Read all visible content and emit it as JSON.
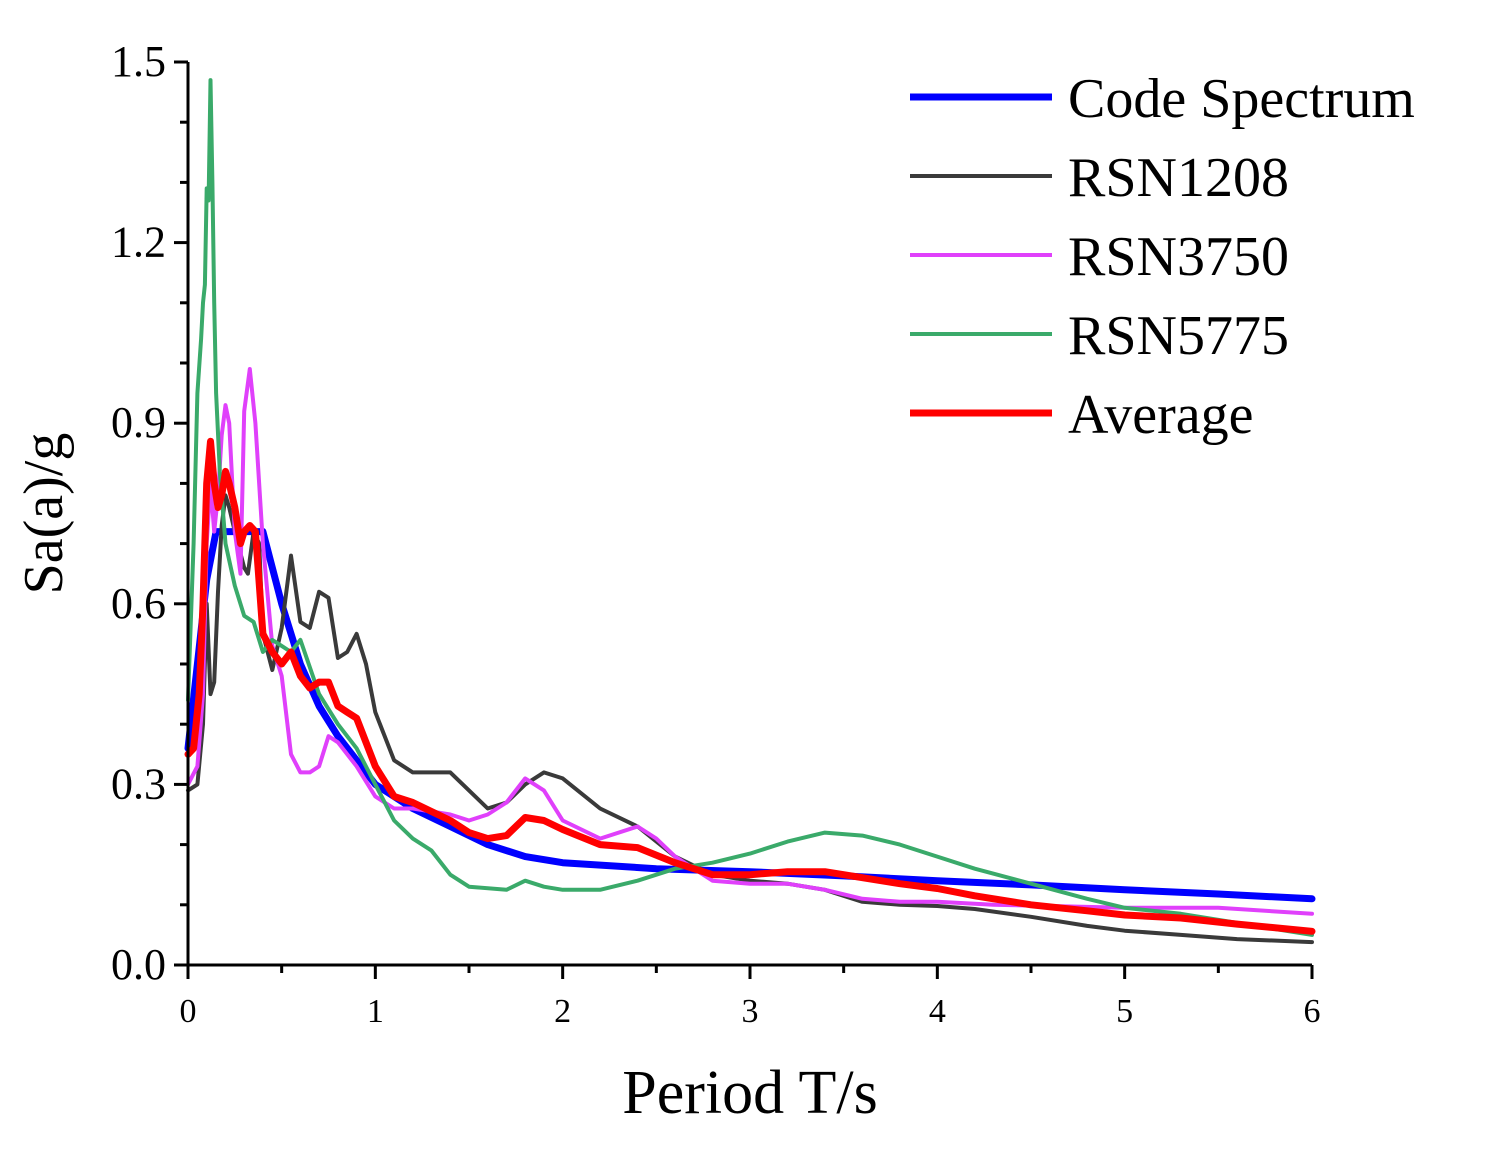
{
  "chart_data": {
    "type": "line",
    "title": "",
    "xlabel": "Period T/s",
    "ylabel": "Sa(a)/g",
    "xlim": [
      0,
      6
    ],
    "ylim": [
      0,
      1.5
    ],
    "x_ticks": [
      {
        "value": 0,
        "label": "0"
      },
      {
        "value": 1,
        "label": "1"
      },
      {
        "value": 2,
        "label": "2"
      },
      {
        "value": 3,
        "label": "3"
      },
      {
        "value": 4,
        "label": "4"
      },
      {
        "value": 5,
        "label": "5"
      },
      {
        "value": 6,
        "label": "6"
      }
    ],
    "y_ticks": [
      {
        "value": 0,
        "label": "0.0"
      },
      {
        "value": 0.3,
        "label": "0.3"
      },
      {
        "value": 0.6,
        "label": "0.6"
      },
      {
        "value": 0.9,
        "label": "0.9"
      },
      {
        "value": 1.2,
        "label": "1.2"
      },
      {
        "value": 1.5,
        "label": "1.5"
      }
    ],
    "grid": false,
    "legend_position": "top-right",
    "series": [
      {
        "name": "Code Spectrum",
        "color": "#0000ff",
        "weight": "thick",
        "points": [
          [
            0,
            0.36
          ],
          [
            0.05,
            0.5
          ],
          [
            0.1,
            0.64
          ],
          [
            0.15,
            0.72
          ],
          [
            0.4,
            0.72
          ],
          [
            0.5,
            0.6
          ],
          [
            0.6,
            0.5
          ],
          [
            0.7,
            0.43
          ],
          [
            0.8,
            0.38
          ],
          [
            0.9,
            0.34
          ],
          [
            1.0,
            0.3
          ],
          [
            1.2,
            0.26
          ],
          [
            1.4,
            0.23
          ],
          [
            1.6,
            0.2
          ],
          [
            1.8,
            0.18
          ],
          [
            2.0,
            0.17
          ],
          [
            2.5,
            0.16
          ],
          [
            3.0,
            0.155
          ],
          [
            3.5,
            0.148
          ],
          [
            4.0,
            0.14
          ],
          [
            4.5,
            0.133
          ],
          [
            5.0,
            0.125
          ],
          [
            5.5,
            0.118
          ],
          [
            6.0,
            0.11
          ]
        ]
      },
      {
        "name": "RSN1208",
        "color": "#3a3a3a",
        "weight": "thin",
        "points": [
          [
            0,
            0.29
          ],
          [
            0.05,
            0.3
          ],
          [
            0.08,
            0.4
          ],
          [
            0.1,
            0.6
          ],
          [
            0.12,
            0.45
          ],
          [
            0.14,
            0.47
          ],
          [
            0.16,
            0.62
          ],
          [
            0.18,
            0.73
          ],
          [
            0.2,
            0.78
          ],
          [
            0.22,
            0.76
          ],
          [
            0.25,
            0.72
          ],
          [
            0.3,
            0.66
          ],
          [
            0.32,
            0.65
          ],
          [
            0.35,
            0.72
          ],
          [
            0.38,
            0.7
          ],
          [
            0.4,
            0.55
          ],
          [
            0.45,
            0.49
          ],
          [
            0.5,
            0.56
          ],
          [
            0.55,
            0.68
          ],
          [
            0.6,
            0.57
          ],
          [
            0.65,
            0.56
          ],
          [
            0.7,
            0.62
          ],
          [
            0.75,
            0.61
          ],
          [
            0.8,
            0.51
          ],
          [
            0.85,
            0.52
          ],
          [
            0.9,
            0.55
          ],
          [
            0.95,
            0.5
          ],
          [
            1.0,
            0.42
          ],
          [
            1.1,
            0.34
          ],
          [
            1.2,
            0.32
          ],
          [
            1.3,
            0.32
          ],
          [
            1.4,
            0.32
          ],
          [
            1.5,
            0.29
          ],
          [
            1.6,
            0.26
          ],
          [
            1.7,
            0.27
          ],
          [
            1.8,
            0.3
          ],
          [
            1.9,
            0.32
          ],
          [
            2.0,
            0.31
          ],
          [
            2.2,
            0.26
          ],
          [
            2.4,
            0.23
          ],
          [
            2.6,
            0.18
          ],
          [
            2.8,
            0.15
          ],
          [
            3.0,
            0.14
          ],
          [
            3.2,
            0.135
          ],
          [
            3.4,
            0.125
          ],
          [
            3.6,
            0.105
          ],
          [
            3.8,
            0.1
          ],
          [
            4.0,
            0.098
          ],
          [
            4.2,
            0.093
          ],
          [
            4.5,
            0.08
          ],
          [
            4.8,
            0.065
          ],
          [
            5.0,
            0.057
          ],
          [
            5.3,
            0.05
          ],
          [
            5.6,
            0.043
          ],
          [
            6.0,
            0.038
          ]
        ]
      },
      {
        "name": "RSN3750",
        "color": "#e040fb",
        "weight": "thin",
        "points": [
          [
            0,
            0.3
          ],
          [
            0.05,
            0.33
          ],
          [
            0.08,
            0.45
          ],
          [
            0.1,
            0.7
          ],
          [
            0.12,
            0.8
          ],
          [
            0.14,
            0.72
          ],
          [
            0.16,
            0.78
          ],
          [
            0.18,
            0.88
          ],
          [
            0.2,
            0.93
          ],
          [
            0.22,
            0.9
          ],
          [
            0.25,
            0.72
          ],
          [
            0.28,
            0.65
          ],
          [
            0.3,
            0.92
          ],
          [
            0.33,
            0.99
          ],
          [
            0.36,
            0.9
          ],
          [
            0.4,
            0.7
          ],
          [
            0.45,
            0.53
          ],
          [
            0.5,
            0.48
          ],
          [
            0.55,
            0.35
          ],
          [
            0.6,
            0.32
          ],
          [
            0.65,
            0.32
          ],
          [
            0.7,
            0.33
          ],
          [
            0.75,
            0.38
          ],
          [
            0.8,
            0.37
          ],
          [
            0.9,
            0.33
          ],
          [
            1.0,
            0.28
          ],
          [
            1.1,
            0.26
          ],
          [
            1.2,
            0.26
          ],
          [
            1.4,
            0.25
          ],
          [
            1.5,
            0.24
          ],
          [
            1.6,
            0.25
          ],
          [
            1.7,
            0.27
          ],
          [
            1.8,
            0.31
          ],
          [
            1.9,
            0.29
          ],
          [
            2.0,
            0.24
          ],
          [
            2.2,
            0.21
          ],
          [
            2.4,
            0.23
          ],
          [
            2.5,
            0.21
          ],
          [
            2.6,
            0.18
          ],
          [
            2.8,
            0.14
          ],
          [
            3.0,
            0.135
          ],
          [
            3.2,
            0.135
          ],
          [
            3.4,
            0.125
          ],
          [
            3.6,
            0.11
          ],
          [
            3.8,
            0.105
          ],
          [
            4.0,
            0.105
          ],
          [
            4.3,
            0.1
          ],
          [
            4.6,
            0.098
          ],
          [
            5.0,
            0.095
          ],
          [
            5.5,
            0.095
          ],
          [
            6.0,
            0.085
          ]
        ]
      },
      {
        "name": "RSN5775",
        "color": "#3aaa6a",
        "weight": "thin",
        "points": [
          [
            0,
            0.44
          ],
          [
            0.03,
            0.7
          ],
          [
            0.05,
            0.95
          ],
          [
            0.07,
            1.04
          ],
          [
            0.08,
            1.1
          ],
          [
            0.09,
            1.13
          ],
          [
            0.1,
            1.29
          ],
          [
            0.11,
            1.27
          ],
          [
            0.12,
            1.47
          ],
          [
            0.13,
            1.3
          ],
          [
            0.14,
            1.1
          ],
          [
            0.15,
            0.95
          ],
          [
            0.17,
            0.82
          ],
          [
            0.2,
            0.7
          ],
          [
            0.25,
            0.63
          ],
          [
            0.3,
            0.58
          ],
          [
            0.35,
            0.57
          ],
          [
            0.4,
            0.52
          ],
          [
            0.45,
            0.54
          ],
          [
            0.5,
            0.53
          ],
          [
            0.55,
            0.52
          ],
          [
            0.6,
            0.54
          ],
          [
            0.7,
            0.45
          ],
          [
            0.8,
            0.4
          ],
          [
            0.9,
            0.36
          ],
          [
            1.0,
            0.3
          ],
          [
            1.1,
            0.24
          ],
          [
            1.2,
            0.21
          ],
          [
            1.3,
            0.19
          ],
          [
            1.4,
            0.15
          ],
          [
            1.5,
            0.13
          ],
          [
            1.7,
            0.125
          ],
          [
            1.8,
            0.14
          ],
          [
            1.9,
            0.13
          ],
          [
            2.0,
            0.125
          ],
          [
            2.2,
            0.125
          ],
          [
            2.4,
            0.14
          ],
          [
            2.6,
            0.16
          ],
          [
            2.8,
            0.17
          ],
          [
            3.0,
            0.185
          ],
          [
            3.2,
            0.205
          ],
          [
            3.4,
            0.22
          ],
          [
            3.6,
            0.215
          ],
          [
            3.8,
            0.2
          ],
          [
            4.0,
            0.18
          ],
          [
            4.2,
            0.16
          ],
          [
            4.5,
            0.135
          ],
          [
            4.8,
            0.11
          ],
          [
            5.0,
            0.095
          ],
          [
            5.3,
            0.085
          ],
          [
            5.6,
            0.07
          ],
          [
            6.0,
            0.05
          ]
        ]
      },
      {
        "name": "Average",
        "color": "#ff0000",
        "weight": "thick",
        "points": [
          [
            0,
            0.35
          ],
          [
            0.03,
            0.36
          ],
          [
            0.06,
            0.45
          ],
          [
            0.08,
            0.6
          ],
          [
            0.1,
            0.8
          ],
          [
            0.12,
            0.87
          ],
          [
            0.14,
            0.8
          ],
          [
            0.16,
            0.76
          ],
          [
            0.18,
            0.78
          ],
          [
            0.2,
            0.82
          ],
          [
            0.22,
            0.8
          ],
          [
            0.25,
            0.76
          ],
          [
            0.28,
            0.7
          ],
          [
            0.3,
            0.72
          ],
          [
            0.33,
            0.73
          ],
          [
            0.36,
            0.72
          ],
          [
            0.4,
            0.55
          ],
          [
            0.45,
            0.52
          ],
          [
            0.5,
            0.5
          ],
          [
            0.55,
            0.52
          ],
          [
            0.6,
            0.48
          ],
          [
            0.65,
            0.46
          ],
          [
            0.7,
            0.47
          ],
          [
            0.75,
            0.47
          ],
          [
            0.8,
            0.43
          ],
          [
            0.85,
            0.42
          ],
          [
            0.9,
            0.41
          ],
          [
            1.0,
            0.33
          ],
          [
            1.1,
            0.28
          ],
          [
            1.2,
            0.27
          ],
          [
            1.3,
            0.255
          ],
          [
            1.4,
            0.24
          ],
          [
            1.5,
            0.22
          ],
          [
            1.6,
            0.21
          ],
          [
            1.7,
            0.215
          ],
          [
            1.8,
            0.245
          ],
          [
            1.9,
            0.24
          ],
          [
            2.0,
            0.225
          ],
          [
            2.2,
            0.2
          ],
          [
            2.4,
            0.195
          ],
          [
            2.6,
            0.17
          ],
          [
            2.8,
            0.15
          ],
          [
            3.0,
            0.15
          ],
          [
            3.2,
            0.155
          ],
          [
            3.4,
            0.155
          ],
          [
            3.6,
            0.145
          ],
          [
            3.8,
            0.135
          ],
          [
            4.0,
            0.127
          ],
          [
            4.2,
            0.115
          ],
          [
            4.5,
            0.1
          ],
          [
            4.8,
            0.09
          ],
          [
            5.0,
            0.083
          ],
          [
            5.3,
            0.078
          ],
          [
            5.6,
            0.068
          ],
          [
            6.0,
            0.056
          ]
        ]
      }
    ]
  }
}
